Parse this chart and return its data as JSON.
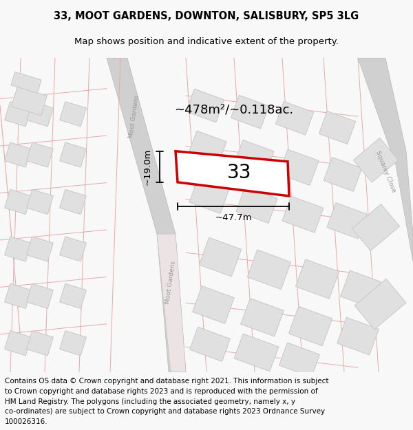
{
  "title_line1": "33, MOOT GARDENS, DOWNTON, SALISBURY, SP5 3LG",
  "title_line2": "Map shows position and indicative extent of the property.",
  "area_label": "~478m²/~0.118ac.",
  "width_label": "~47.7m",
  "height_label": "~19.0m",
  "plot_number": "33",
  "street_label_upper": "Moot Gardens",
  "street_label_lower": "Moot Gardens",
  "street_label_right": "Squarey Close",
  "bg_color": "#f8f8f8",
  "map_bg": "#ffffff",
  "plot_color": "#cc0000",
  "road_line_color": "#e8a8a8",
  "road_fill_color": "#f0e8e8",
  "building_fill": "#e0e0e0",
  "building_edge": "#c8c8c8",
  "road_gray_color": "#d0d0d0",
  "road_gray_edge": "#b8b8b8",
  "footer_lines": [
    "Contains OS data © Crown copyright and database right 2021. This information is subject",
    "to Crown copyright and database rights 2023 and is reproduced with the permission of",
    "HM Land Registry. The polygons (including the associated geometry, namely x, y",
    "co-ordinates) are subject to Crown copyright and database rights 2023 Ordnance Survey",
    "100026316."
  ]
}
